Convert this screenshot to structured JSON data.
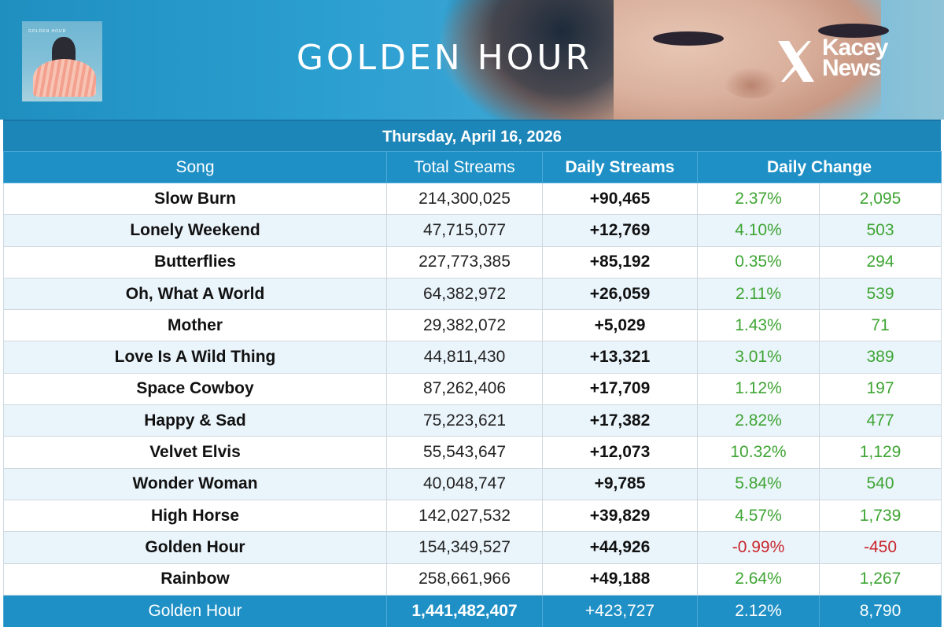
{
  "banner": {
    "title": "GOLDEN HOUR",
    "brand_line1": "Kacey",
    "brand_line2": "News",
    "album_caption": "GOLDEN HOUR",
    "brand_icon": "x-logo-icon"
  },
  "date": "Thursday, April 16, 2026",
  "columns": {
    "song": "Song",
    "total": "Total Streams",
    "daily": "Daily Streams",
    "change": "Daily Change"
  },
  "rows": [
    {
      "song": "Slow Burn",
      "total": "214,300,025",
      "daily": "+90,465",
      "pct": "2.37%",
      "delta": "2,095",
      "trend": "up"
    },
    {
      "song": "Lonely Weekend",
      "total": "47,715,077",
      "daily": "+12,769",
      "pct": "4.10%",
      "delta": "503",
      "trend": "up"
    },
    {
      "song": "Butterflies",
      "total": "227,773,385",
      "daily": "+85,192",
      "pct": "0.35%",
      "delta": "294",
      "trend": "up"
    },
    {
      "song": "Oh, What A World",
      "total": "64,382,972",
      "daily": "+26,059",
      "pct": "2.11%",
      "delta": "539",
      "trend": "up"
    },
    {
      "song": "Mother",
      "total": "29,382,072",
      "daily": "+5,029",
      "pct": "1.43%",
      "delta": "71",
      "trend": "up"
    },
    {
      "song": "Love Is A Wild Thing",
      "total": "44,811,430",
      "daily": "+13,321",
      "pct": "3.01%",
      "delta": "389",
      "trend": "up"
    },
    {
      "song": "Space Cowboy",
      "total": "87,262,406",
      "daily": "+17,709",
      "pct": "1.12%",
      "delta": "197",
      "trend": "up"
    },
    {
      "song": "Happy & Sad",
      "total": "75,223,621",
      "daily": "+17,382",
      "pct": "2.82%",
      "delta": "477",
      "trend": "up"
    },
    {
      "song": "Velvet Elvis",
      "total": "55,543,647",
      "daily": "+12,073",
      "pct": "10.32%",
      "delta": "1,129",
      "trend": "up"
    },
    {
      "song": "Wonder Woman",
      "total": "40,048,747",
      "daily": "+9,785",
      "pct": "5.84%",
      "delta": "540",
      "trend": "up"
    },
    {
      "song": "High Horse",
      "total": "142,027,532",
      "daily": "+39,829",
      "pct": "4.57%",
      "delta": "1,739",
      "trend": "up"
    },
    {
      "song": "Golden Hour",
      "total": "154,349,527",
      "daily": "+44,926",
      "pct": "-0.99%",
      "delta": "-450",
      "trend": "down"
    },
    {
      "song": "Rainbow",
      "total": "258,661,966",
      "daily": "+49,188",
      "pct": "2.64%",
      "delta": "1,267",
      "trend": "up"
    }
  ],
  "footer": {
    "song": "Golden Hour",
    "total": "1,441,482,407",
    "daily": "+423,727",
    "pct": "2.12%",
    "delta": "8,790"
  },
  "colors": {
    "header_blue": "#1f90c6",
    "positive_green": "#3ea533",
    "negative_red": "#c8262c"
  }
}
